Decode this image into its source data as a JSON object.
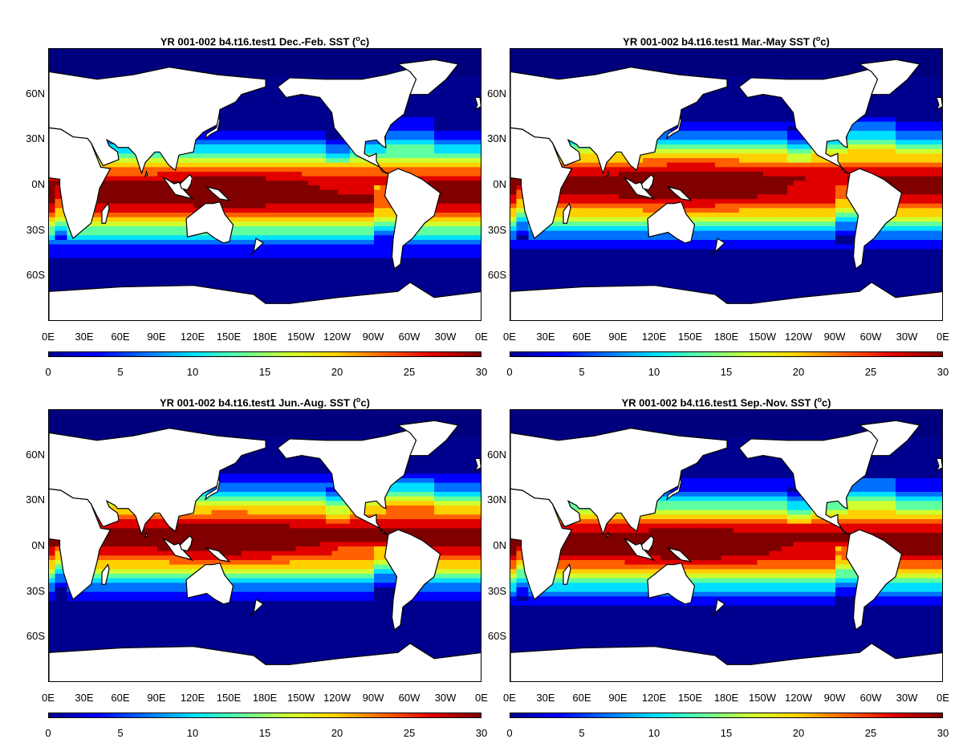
{
  "colors": {
    "land": "#ffffff",
    "coast": "#000000",
    "ice": "#00007f"
  },
  "colorbar": {
    "colors": [
      "#00008f",
      "#0000ff",
      "#0070ff",
      "#00dfff",
      "#60ffa0",
      "#d0ff30",
      "#ffd000",
      "#ff6000",
      "#e00000",
      "#800000"
    ],
    "ticks": [
      "0",
      "5",
      "10",
      "15",
      "20",
      "25",
      "30"
    ],
    "range": [
      0,
      30
    ]
  },
  "lon_ticks": [
    "0E",
    "30E",
    "60E",
    "90E",
    "120E",
    "150E",
    "180E",
    "150W",
    "120W",
    "90W",
    "60W",
    "30W",
    "0E"
  ],
  "lat_ticks": [
    "60N",
    "30N",
    "0N",
    "30S",
    "60S"
  ],
  "panels": [
    {
      "title": "YR 001-002 b4.t16.test1 Dec.-Feb. SST (",
      "sup": "o",
      "unit": "c)",
      "season": "DJF"
    },
    {
      "title": "YR 001-002 b4.t16.test1 Mar.-May SST (",
      "sup": "o",
      "unit": "c)",
      "season": "MAM"
    },
    {
      "title": "YR 001-002 b4.t16.test1 Jun.-Aug. SST (",
      "sup": "o",
      "unit": "c)",
      "season": "JJA"
    },
    {
      "title": "YR 001-002 b4.t16.test1 Sep.-Nov. SST (",
      "sup": "o",
      "unit": "c)",
      "season": "SON"
    }
  ]
}
